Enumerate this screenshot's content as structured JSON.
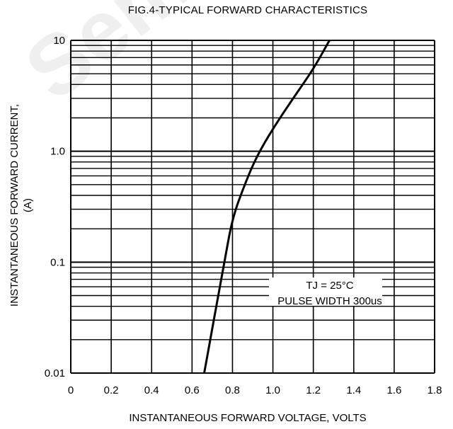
{
  "chart_data": {
    "type": "line",
    "title": "FIG.4-TYPICAL FORWARD CHARACTERISTICS",
    "xlabel": "INSTANTANEOUS FORWARD VOLTAGE, VOLTS",
    "ylabel": [
      "INSTANTANEOUS FORWARD CURRENT,",
      "(A)"
    ],
    "xlim": [
      0,
      1.8
    ],
    "ylim": [
      0.01,
      10
    ],
    "yscale": "log",
    "grid": true,
    "x_ticks": [
      "0",
      "0.2",
      "0.4",
      "0.6",
      "0.8",
      "1.0",
      "1.2",
      "1.4",
      "1.6",
      "1.8"
    ],
    "y_ticks": [
      "0.01",
      "0.1",
      "1.0",
      "10"
    ],
    "annotation": [
      "TJ = 25°C",
      "PULSE WIDTH 300us"
    ],
    "series": [
      {
        "x": [
          0.66,
          0.69,
          0.72,
          0.76,
          0.8,
          0.86,
          0.92,
          1.0,
          1.1,
          1.2,
          1.28
        ],
        "y": [
          0.01,
          0.02,
          0.04,
          0.1,
          0.25,
          0.5,
          0.9,
          1.6,
          3.0,
          5.5,
          10
        ]
      }
    ]
  },
  "watermark": "Semicon"
}
